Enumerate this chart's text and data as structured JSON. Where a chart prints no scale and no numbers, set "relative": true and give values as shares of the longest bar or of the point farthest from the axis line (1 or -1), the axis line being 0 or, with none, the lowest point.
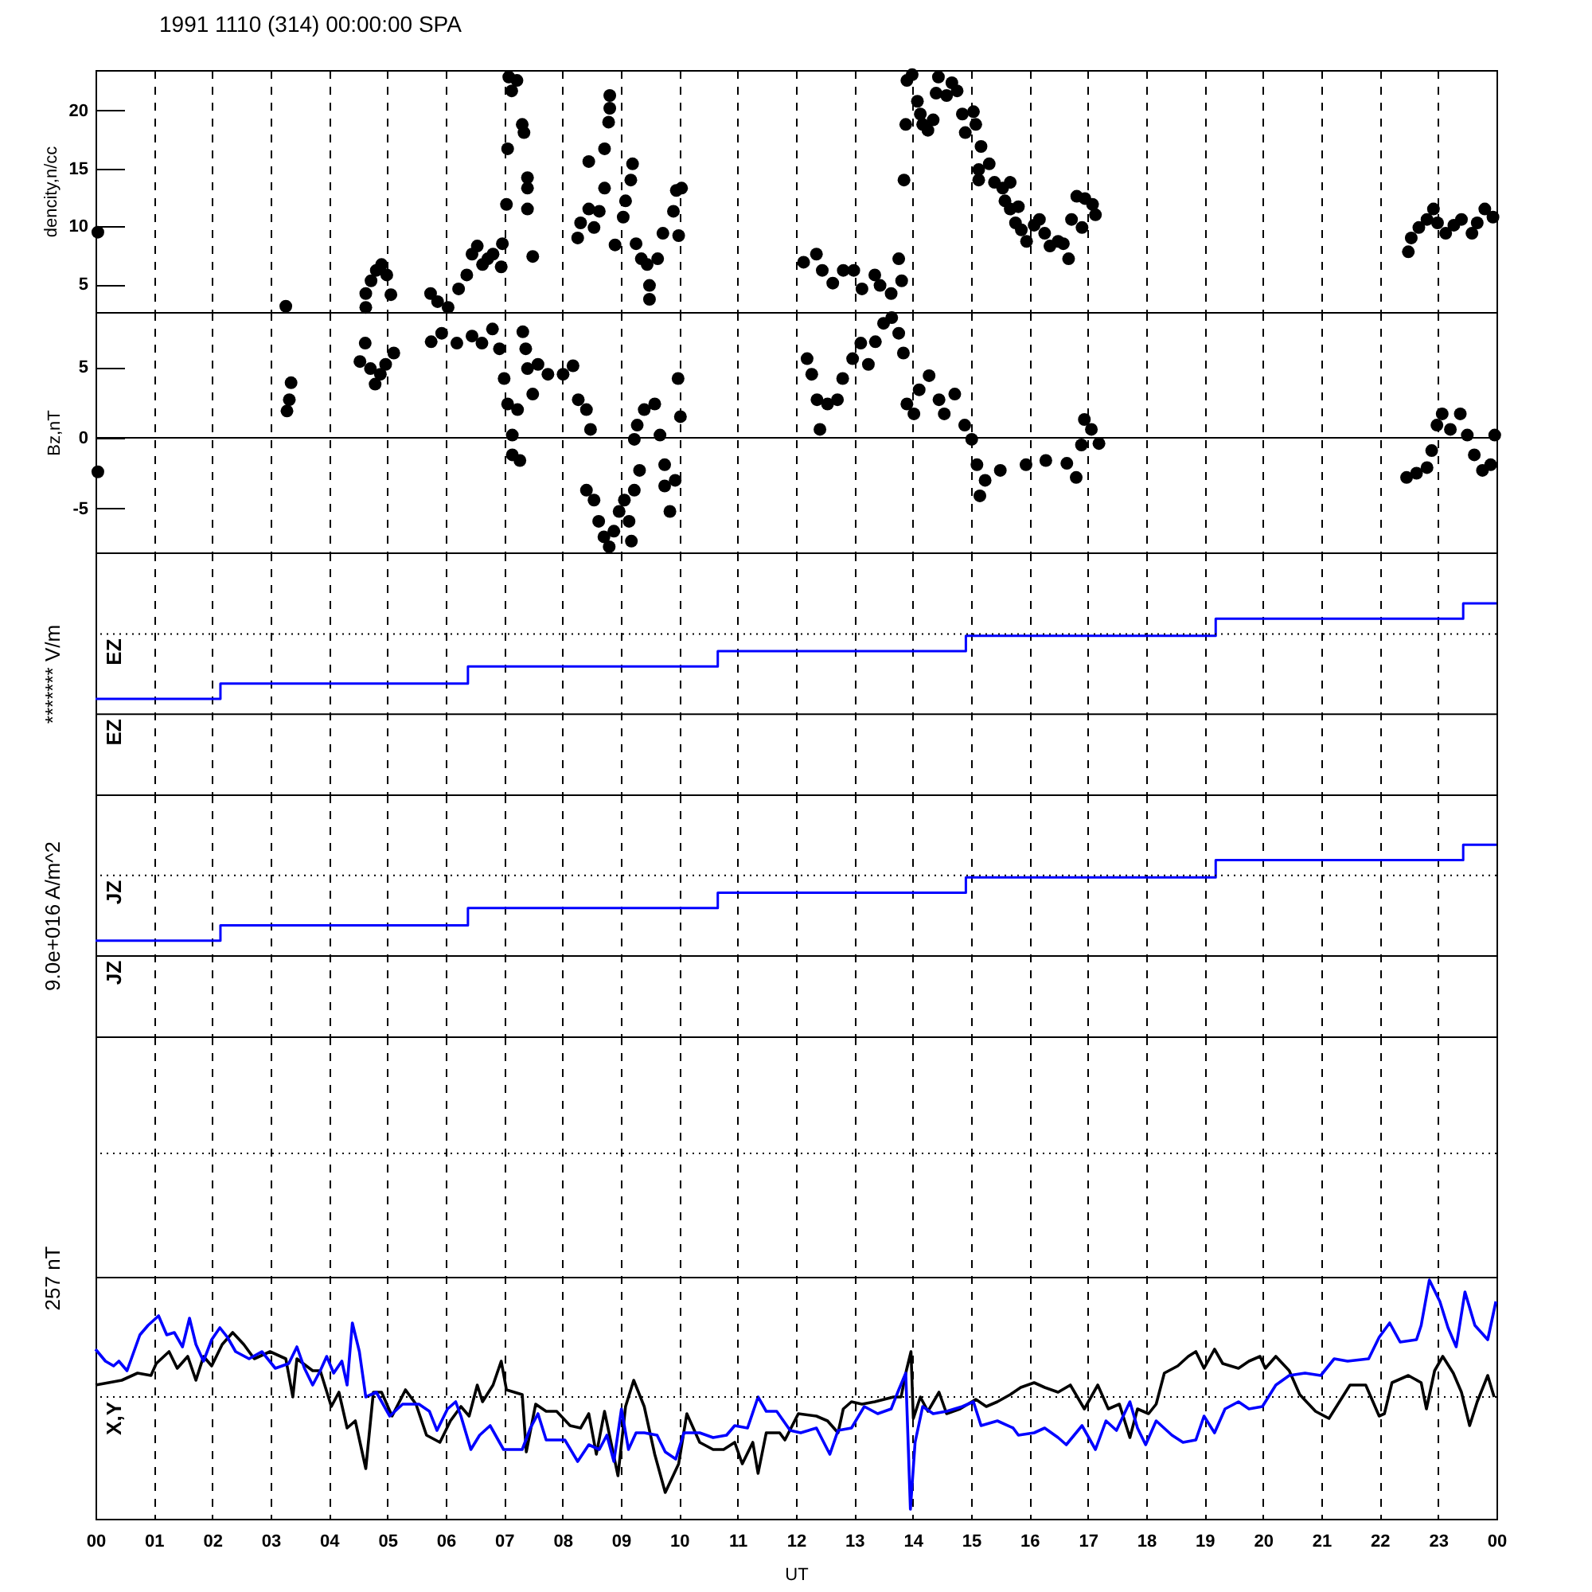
{
  "chart_data": [
    {
      "type": "scatter",
      "title": "1991 1110 (314) 00:00:00 SPA",
      "ylabel": "dencity,n/cc",
      "color": "#000000",
      "marker": "circle",
      "xlim": [
        0,
        24
      ],
      "xticks": [
        0,
        1,
        2,
        3,
        4,
        5,
        6,
        7,
        8,
        9,
        10,
        11,
        12,
        13,
        14,
        15,
        16,
        17,
        18,
        19,
        20,
        21,
        22,
        23,
        24
      ],
      "ylim": [
        2.6,
        23.5
      ],
      "yticks": [
        5,
        10,
        15,
        20
      ],
      "grid": "x",
      "tick_labels": "y",
      "x": [
        0.04,
        3.26,
        4.63,
        4.63,
        4.72,
        4.81,
        4.9,
        4.99,
        5.06,
        5.74,
        5.86,
        6.04,
        6.22,
        6.36,
        6.45,
        6.54,
        6.63,
        6.72,
        6.81,
        6.95,
        6.97,
        7.04,
        7.06,
        7.08,
        7.13,
        7.22,
        7.31,
        7.34,
        7.4,
        7.4,
        7.4,
        7.49,
        8.26,
        8.31,
        8.45,
        8.45,
        8.54,
        8.63,
        8.72,
        8.72,
        8.79,
        8.81,
        8.81,
        8.9,
        9.04,
        9.08,
        9.17,
        9.2,
        9.26,
        9.35,
        9.45,
        9.49,
        9.49,
        9.63,
        9.72,
        9.9,
        9.95,
        9.99,
        10.04,
        12.13,
        12.35,
        12.45,
        12.63,
        12.81,
        12.99,
        13.13,
        13.35,
        13.44,
        13.63,
        13.76,
        13.81,
        13.85,
        13.88,
        13.9,
        13.99,
        14.08,
        14.13,
        14.17,
        14.26,
        14.35,
        14.4,
        14.44,
        14.58,
        14.67,
        14.76,
        14.85,
        14.9,
        15.04,
        15.08,
        15.13,
        15.13,
        15.17,
        15.31,
        15.4,
        15.54,
        15.58,
        15.67,
        15.67,
        15.76,
        15.81,
        15.86,
        15.95,
        16.08,
        16.17,
        16.26,
        16.35,
        16.49,
        16.58,
        16.67,
        16.72,
        16.81,
        16.9,
        16.95,
        17.08,
        17.13,
        22.49,
        22.54,
        22.67,
        22.81,
        22.92,
        22.99,
        23.13,
        23.27,
        23.4,
        23.58,
        23.67,
        23.8,
        23.94
      ],
      "values": [
        9.5,
        3.1,
        4.2,
        3.0,
        5.3,
        6.2,
        6.7,
        5.8,
        4.1,
        4.2,
        3.5,
        3.0,
        4.6,
        5.8,
        7.6,
        8.3,
        6.7,
        7.2,
        7.6,
        6.5,
        8.5,
        11.9,
        16.7,
        22.9,
        21.7,
        22.6,
        18.8,
        18.1,
        14.2,
        13.3,
        11.5,
        7.4,
        9.0,
        10.3,
        11.5,
        15.6,
        9.9,
        11.3,
        13.3,
        16.7,
        19.0,
        20.2,
        21.3,
        8.4,
        10.8,
        12.2,
        14.0,
        15.4,
        8.5,
        7.2,
        6.7,
        4.9,
        3.7,
        7.2,
        9.4,
        11.3,
        13.1,
        9.2,
        13.3,
        6.9,
        7.6,
        6.2,
        5.1,
        6.2,
        6.2,
        4.6,
        5.8,
        4.9,
        4.2,
        7.2,
        5.3,
        14.0,
        18.8,
        22.6,
        23.1,
        20.8,
        19.7,
        18.8,
        18.3,
        19.2,
        21.5,
        22.9,
        21.3,
        22.4,
        21.7,
        19.7,
        18.1,
        19.9,
        18.8,
        14.9,
        14.0,
        16.9,
        15.4,
        13.8,
        13.3,
        12.2,
        13.8,
        11.5,
        10.3,
        11.7,
        9.7,
        8.7,
        10.1,
        10.6,
        9.4,
        8.3,
        8.7,
        8.5,
        7.2,
        10.6,
        12.6,
        9.9,
        12.4,
        11.9,
        11.0,
        7.8,
        9.0,
        9.9,
        10.6,
        11.5,
        10.3,
        9.4,
        10.1,
        10.6,
        9.4,
        10.3,
        11.5,
        10.8
      ]
    },
    {
      "type": "scatter",
      "ylabel": "Bz,nT",
      "color": "#000000",
      "marker": "circle",
      "xlim": [
        0,
        24
      ],
      "xticks": [
        0,
        1,
        2,
        3,
        4,
        5,
        6,
        7,
        8,
        9,
        10,
        11,
        12,
        13,
        14,
        15,
        16,
        17,
        18,
        19,
        20,
        21,
        22,
        23,
        24
      ],
      "ylim": [
        -8.1,
        8.9
      ],
      "yticks": [
        -5,
        0,
        5
      ],
      "grid": "x",
      "tick_labels": "y",
      "ref_lines": [
        {
          "axis": "y",
          "value": 0
        }
      ],
      "x": [
        0.04,
        3.28,
        3.32,
        3.35,
        4.53,
        4.62,
        4.71,
        4.79,
        4.88,
        4.97,
        5.11,
        5.75,
        5.93,
        6.19,
        6.45,
        6.62,
        6.8,
        6.92,
        7.0,
        7.06,
        7.14,
        7.14,
        7.23,
        7.27,
        7.32,
        7.37,
        7.4,
        7.49,
        7.58,
        7.75,
        8.01,
        8.18,
        8.27,
        8.41,
        8.48,
        8.41,
        8.54,
        8.62,
        8.71,
        8.8,
        8.88,
        8.97,
        9.06,
        9.14,
        9.18,
        9.23,
        9.32,
        9.23,
        9.28,
        9.4,
        9.58,
        9.67,
        9.75,
        9.75,
        9.84,
        9.93,
        9.98,
        10.02,
        12.19,
        12.27,
        12.36,
        12.41,
        12.54,
        12.71,
        12.8,
        12.97,
        13.11,
        13.24,
        13.36,
        13.5,
        13.64,
        13.76,
        13.84,
        13.9,
        14.02,
        14.11,
        14.28,
        14.45,
        14.54,
        14.72,
        14.89,
        15.01,
        15.1,
        15.15,
        15.24,
        15.5,
        15.94,
        16.28,
        16.64,
        16.8,
        16.89,
        16.94,
        17.06,
        17.19,
        22.46,
        22.63,
        22.81,
        22.89,
        22.98,
        23.07,
        23.21,
        23.38,
        23.5,
        23.62,
        23.76,
        23.9,
        23.97
      ],
      "values": [
        -2.4,
        1.9,
        2.7,
        3.9,
        5.4,
        6.7,
        4.9,
        3.8,
        4.5,
        5.2,
        6.0,
        6.8,
        7.4,
        6.7,
        7.2,
        6.7,
        7.7,
        6.3,
        4.2,
        2.4,
        0.2,
        -1.2,
        2.0,
        -1.6,
        7.5,
        6.3,
        4.9,
        3.1,
        5.2,
        4.5,
        4.5,
        5.1,
        2.7,
        2.0,
        0.6,
        -3.7,
        -4.4,
        -5.9,
        -7.0,
        -7.7,
        -6.6,
        -5.2,
        -4.4,
        -5.9,
        -7.3,
        -3.7,
        -2.3,
        -0.1,
        0.9,
        2.0,
        2.4,
        0.2,
        -1.9,
        -3.4,
        -5.2,
        -3.0,
        4.2,
        1.5,
        5.6,
        4.5,
        2.7,
        0.6,
        2.4,
        2.7,
        4.2,
        5.6,
        6.7,
        5.2,
        6.8,
        8.1,
        8.5,
        7.4,
        6.0,
        2.4,
        1.7,
        3.4,
        4.4,
        2.7,
        1.7,
        3.1,
        0.9,
        -0.1,
        -1.9,
        -4.1,
        -3.0,
        -2.3,
        -1.9,
        -1.6,
        -1.8,
        -2.8,
        -0.5,
        1.3,
        0.6,
        -0.4,
        -2.8,
        -2.5,
        -2.1,
        -0.9,
        0.9,
        1.7,
        0.6,
        1.7,
        0.2,
        -1.2,
        -2.3,
        -1.9,
        0.2
      ]
    },
    {
      "type": "step",
      "relative": true,
      "ylabel": "******* V/m",
      "color": "#0000ff",
      "xlim": [
        0,
        24
      ],
      "xticks": [
        0,
        1,
        2,
        3,
        4,
        5,
        6,
        7,
        8,
        9,
        10,
        11,
        12,
        13,
        14,
        15,
        16,
        17,
        18,
        19,
        20,
        21,
        22,
        23,
        24
      ],
      "grid": "x",
      "tick_labels": false,
      "ref_lines": [
        {
          "axis": "y",
          "value": 0.84,
          "label": "EZ",
          "line_style": "dotted"
        },
        {
          "axis": "y",
          "value": 0.42,
          "label": "EZ"
        }
      ],
      "x": [
        0,
        2.14,
        6.38,
        10.66,
        14.91,
        19.19,
        23.43,
        24
      ],
      "values": [
        0.5,
        0.58,
        0.67,
        0.75,
        0.83,
        0.92,
        1,
        1
      ]
    },
    {
      "type": "step",
      "relative": true,
      "ylabel": "9.0e+016 A/m^2",
      "color": "#0000ff",
      "xlim": [
        0,
        24
      ],
      "xticks": [
        0,
        1,
        2,
        3,
        4,
        5,
        6,
        7,
        8,
        9,
        10,
        11,
        12,
        13,
        14,
        15,
        16,
        17,
        18,
        19,
        20,
        21,
        22,
        23,
        24
      ],
      "grid": "x",
      "tick_labels": false,
      "ref_lines": [
        {
          "axis": "y",
          "value": 0.84,
          "label": "JZ",
          "line_style": "dotted"
        },
        {
          "axis": "y",
          "value": 0.42,
          "label": "JZ"
        }
      ],
      "x": [
        0,
        2.14,
        6.38,
        10.66,
        14.91,
        19.19,
        23.43,
        24
      ],
      "values": [
        0.5,
        0.58,
        0.67,
        0.75,
        0.83,
        0.92,
        1,
        1
      ]
    },
    {
      "type": "line",
      "relative": true,
      "ylabel": "257 nT",
      "xlabel": "UT",
      "xlim": [
        0,
        24
      ],
      "xticks": [
        {
          "value": 0,
          "label": "00"
        },
        {
          "value": 1,
          "label": "01"
        },
        {
          "value": 2,
          "label": "02"
        },
        {
          "value": 3,
          "label": "03"
        },
        {
          "value": 4,
          "label": "04"
        },
        {
          "value": 5,
          "label": "05"
        },
        {
          "value": 6,
          "label": "06"
        },
        {
          "value": 7,
          "label": "07"
        },
        {
          "value": 8,
          "label": "08"
        },
        {
          "value": 9,
          "label": "09"
        },
        10,
        11,
        12,
        13,
        14,
        15,
        16,
        17,
        18,
        19,
        20,
        21,
        22,
        23,
        {
          "value": 24,
          "label": "00"
        }
      ],
      "grid": "x",
      "tick_labels": "x",
      "ref_lines": [
        {
          "axis": "y",
          "value": 1.53,
          "line_style": "dotted"
        },
        {
          "axis": "y",
          "value": 1.01
        },
        {
          "axis": "y",
          "value": 0.51,
          "label": "X,Y",
          "line_style": "dotted"
        }
      ],
      "series": [
        {
          "color": "#000000",
          "x": [
            0,
            0.45,
            0.72,
            0.95,
            1.04,
            1.26,
            1.4,
            1.58,
            1.72,
            1.85,
            1.99,
            2.17,
            2.35,
            2.54,
            2.72,
            2.99,
            3.26,
            3.38,
            3.45,
            3.72,
            3.85,
            4.04,
            4.17,
            4.31,
            4.45,
            4.63,
            4.76,
            4.9,
            5.08,
            5.31,
            5.49,
            5.67,
            5.9,
            6.08,
            6.26,
            6.4,
            6.54,
            6.63,
            6.81,
            6.95,
            7.04,
            7.31,
            7.38,
            7.54,
            7.72,
            7.9,
            8.13,
            8.31,
            8.45,
            8.58,
            8.72,
            8.95,
            9.08,
            9.22,
            9.4,
            9.58,
            9.76,
            9.99,
            10.13,
            10.35,
            10.58,
            10.76,
            10.95,
            11.08,
            11.26,
            11.35,
            11.49,
            11.72,
            11.81,
            12.04,
            12.35,
            12.54,
            12.72,
            12.81,
            12.95,
            13.13,
            13.35,
            13.67,
            13.8,
            13.89,
            13.97,
            14.01,
            14.13,
            14.26,
            14.45,
            14.58,
            14.81,
            15.08,
            15.26,
            15.45,
            15.67,
            15.85,
            16.08,
            16.26,
            16.49,
            16.7,
            16.94,
            17.17,
            17.35,
            17.54,
            17.72,
            17.85,
            18.04,
            18.17,
            18.31,
            18.54,
            18.72,
            18.85,
            18.99,
            19.17,
            19.31,
            19.58,
            19.76,
            19.95,
            20.04,
            20.22,
            20.45,
            20.63,
            20.9,
            21.13,
            21.31,
            21.49,
            21.76,
            21.99,
            22.08,
            22.21,
            22.49,
            22.71,
            22.8,
            22.94,
            23.08,
            23.26,
            23.4,
            23.54,
            23.67,
            23.85,
            23.96
          ],
          "values": [
            0.56,
            0.58,
            0.61,
            0.6,
            0.65,
            0.7,
            0.63,
            0.68,
            0.58,
            0.68,
            0.64,
            0.73,
            0.78,
            0.73,
            0.67,
            0.7,
            0.67,
            0.51,
            0.67,
            0.62,
            0.62,
            0.47,
            0.53,
            0.38,
            0.41,
            0.21,
            0.53,
            0.53,
            0.43,
            0.54,
            0.48,
            0.35,
            0.32,
            0.41,
            0.47,
            0.43,
            0.56,
            0.49,
            0.56,
            0.66,
            0.54,
            0.52,
            0.28,
            0.48,
            0.45,
            0.45,
            0.39,
            0.38,
            0.44,
            0.27,
            0.45,
            0.18,
            0.47,
            0.58,
            0.47,
            0.27,
            0.11,
            0.23,
            0.44,
            0.32,
            0.29,
            0.29,
            0.32,
            0.23,
            0.32,
            0.19,
            0.36,
            0.36,
            0.33,
            0.44,
            0.43,
            0.41,
            0.36,
            0.46,
            0.49,
            0.48,
            0.49,
            0.51,
            0.51,
            0.62,
            0.7,
            0.42,
            0.51,
            0.45,
            0.53,
            0.44,
            0.46,
            0.5,
            0.47,
            0.49,
            0.52,
            0.55,
            0.57,
            0.55,
            0.53,
            0.56,
            0.46,
            0.56,
            0.46,
            0.48,
            0.34,
            0.46,
            0.44,
            0.48,
            0.61,
            0.64,
            0.68,
            0.7,
            0.63,
            0.71,
            0.65,
            0.63,
            0.66,
            0.68,
            0.63,
            0.68,
            0.62,
            0.52,
            0.45,
            0.42,
            0.49,
            0.56,
            0.56,
            0.43,
            0.44,
            0.57,
            0.6,
            0.57,
            0.46,
            0.62,
            0.68,
            0.61,
            0.53,
            0.39,
            0.49,
            0.6,
            0.51
          ]
        },
        {
          "color": "#0000ff",
          "x": [
            0,
            0.17,
            0.31,
            0.4,
            0.54,
            0.76,
            0.9,
            1.08,
            1.22,
            1.35,
            1.49,
            1.61,
            1.72,
            1.85,
            1.99,
            2.13,
            2.26,
            2.4,
            2.63,
            2.85,
            3.08,
            3.31,
            3.45,
            3.58,
            3.72,
            3.85,
            3.96,
            4.08,
            4.22,
            4.31,
            4.4,
            4.52,
            4.63,
            4.81,
            5.04,
            5.26,
            5.54,
            5.72,
            5.85,
            6.03,
            6.17,
            6.26,
            6.43,
            6.58,
            6.76,
            6.99,
            7.31,
            7.45,
            7.58,
            7.72,
            8.04,
            8.26,
            8.45,
            8.63,
            8.76,
            8.88,
            9.01,
            9.13,
            9.26,
            9.4,
            9.62,
            9.76,
            9.94,
            10.08,
            10.35,
            10.58,
            10.81,
            10.95,
            11.17,
            11.35,
            11.49,
            11.67,
            11.9,
            12.08,
            12.35,
            12.58,
            12.72,
            12.95,
            13.17,
            13.4,
            13.63,
            13.76,
            13.88,
            13.96,
            14.04,
            14.17,
            14.35,
            14.58,
            14.85,
            15.04,
            15.17,
            15.45,
            15.72,
            15.81,
            16.08,
            16.26,
            16.49,
            16.63,
            16.9,
            17.13,
            17.31,
            17.49,
            17.72,
            17.85,
            17.99,
            18.17,
            18.44,
            18.63,
            18.85,
            18.99,
            19.17,
            19.35,
            19.58,
            19.76,
            19.99,
            20.22,
            20.45,
            20.72,
            20.99,
            21.22,
            21.45,
            21.81,
            21.99,
            22.17,
            22.35,
            22.63,
            22.71,
            22.85,
            23.03,
            23.17,
            23.31,
            23.46,
            23.63,
            23.85,
            23.99
          ],
          "values": [
            0.71,
            0.66,
            0.64,
            0.66,
            0.62,
            0.77,
            0.81,
            0.85,
            0.77,
            0.78,
            0.72,
            0.84,
            0.73,
            0.66,
            0.75,
            0.8,
            0.76,
            0.7,
            0.67,
            0.7,
            0.63,
            0.65,
            0.72,
            0.63,
            0.56,
            0.62,
            0.68,
            0.61,
            0.66,
            0.56,
            0.82,
            0.7,
            0.51,
            0.53,
            0.43,
            0.48,
            0.48,
            0.45,
            0.37,
            0.46,
            0.49,
            0.43,
            0.29,
            0.35,
            0.39,
            0.29,
            0.29,
            0.38,
            0.44,
            0.33,
            0.33,
            0.24,
            0.31,
            0.29,
            0.35,
            0.24,
            0.46,
            0.29,
            0.36,
            0.36,
            0.35,
            0.28,
            0.25,
            0.36,
            0.36,
            0.34,
            0.35,
            0.39,
            0.38,
            0.51,
            0.45,
            0.45,
            0.37,
            0.36,
            0.38,
            0.27,
            0.37,
            0.38,
            0.47,
            0.44,
            0.46,
            0.54,
            0.61,
            0.04,
            0.32,
            0.47,
            0.44,
            0.45,
            0.47,
            0.49,
            0.39,
            0.41,
            0.38,
            0.35,
            0.36,
            0.38,
            0.34,
            0.31,
            0.39,
            0.29,
            0.41,
            0.37,
            0.49,
            0.38,
            0.31,
            0.41,
            0.35,
            0.32,
            0.33,
            0.43,
            0.36,
            0.46,
            0.49,
            0.46,
            0.47,
            0.56,
            0.6,
            0.61,
            0.6,
            0.67,
            0.66,
            0.67,
            0.76,
            0.82,
            0.74,
            0.75,
            0.81,
            1,
            0.91,
            0.8,
            0.72,
            0.95,
            0.81,
            0.75,
            0.91
          ]
        }
      ]
    }
  ]
}
